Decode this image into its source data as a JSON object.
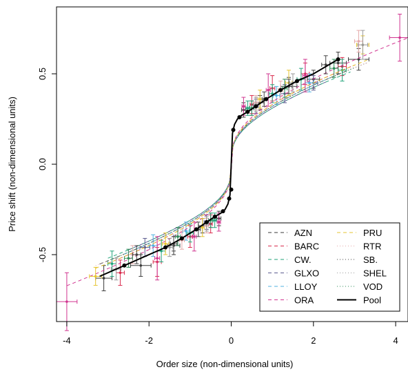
{
  "chart_data": {
    "type": "scatter",
    "title": "",
    "xlabel": "Order size (non-dimensional units)",
    "ylabel": "Price shift (non-dimensional units)",
    "xlim": [
      -4.25,
      4.3
    ],
    "ylim": [
      -0.87,
      0.87
    ],
    "xticks": [
      -4,
      -2,
      0,
      2,
      4
    ],
    "xtick_labels": [
      "-4",
      "-2",
      "0",
      "2",
      "4"
    ],
    "yticks": [
      -0.5,
      0.0,
      0.5
    ],
    "ytick_labels": [
      "-0.5",
      "0.0",
      "0.5"
    ],
    "grid": false,
    "legend_position": "bottom-right",
    "legend_columns": 2,
    "pool_curve": {
      "x": [
        -3.2,
        -2.6,
        -2.0,
        -1.6,
        -1.2,
        -0.85,
        -0.6,
        -0.4,
        -0.25,
        -0.15,
        -0.08,
        -0.03,
        0,
        0.03,
        0.08,
        0.15,
        0.25,
        0.4,
        0.6,
        0.85,
        1.2,
        1.6,
        2.0,
        2.6
      ],
      "y": [
        -0.62,
        -0.56,
        -0.5,
        -0.46,
        -0.41,
        -0.36,
        -0.32,
        -0.29,
        -0.27,
        -0.25,
        -0.22,
        -0.17,
        0.0,
        0.17,
        0.22,
        0.25,
        0.27,
        0.29,
        0.32,
        0.36,
        0.41,
        0.46,
        0.5,
        0.58
      ]
    },
    "pool_points": {
      "x": [
        -2.6,
        -1.6,
        -1.2,
        -0.85,
        -0.6,
        -0.4,
        -0.2,
        -0.05,
        0,
        0.05,
        0.2,
        0.4,
        0.6,
        0.85,
        1.2,
        1.6,
        2.6
      ],
      "y": [
        -0.56,
        -0.46,
        -0.41,
        -0.36,
        -0.32,
        -0.29,
        -0.26,
        -0.19,
        -0.14,
        0.19,
        0.26,
        0.29,
        0.32,
        0.36,
        0.41,
        0.46,
        0.58
      ]
    },
    "series": [
      {
        "name": "AZN",
        "color": "#3a3a3a",
        "dash": "5,4",
        "a": 0.27,
        "b": 0.05,
        "xmin": -3.2,
        "xmax": 2.8,
        "points": [
          [
            -3.1,
            -0.63,
            0.2,
            0.07
          ],
          [
            -2.2,
            -0.56,
            0.25,
            0.06
          ],
          [
            -1.4,
            -0.45,
            0.15,
            0.05
          ],
          [
            -0.7,
            -0.34,
            0.1,
            0.04
          ],
          [
            -0.3,
            -0.3,
            0.05,
            0.04
          ],
          [
            0.3,
            0.3,
            0.05,
            0.04
          ],
          [
            0.7,
            0.34,
            0.1,
            0.04
          ],
          [
            1.4,
            0.43,
            0.2,
            0.05
          ],
          [
            2.0,
            0.47,
            0.15,
            0.05
          ],
          [
            2.6,
            0.56,
            0.2,
            0.06
          ],
          [
            3.1,
            0.58,
            0.25,
            0.06
          ]
        ]
      },
      {
        "name": "BARC",
        "color": "#d9294b",
        "dash": "5,4",
        "a": 0.28,
        "b": 0.05,
        "xmin": -3.0,
        "xmax": 3.0,
        "points": [
          [
            -2.7,
            -0.6,
            0.1,
            0.07
          ],
          [
            -1.8,
            -0.54,
            0.1,
            0.08
          ],
          [
            -1.0,
            -0.4,
            0.06,
            0.06
          ],
          [
            -0.5,
            -0.33,
            0.04,
            0.05
          ],
          [
            0.5,
            0.33,
            0.04,
            0.05
          ],
          [
            1.0,
            0.42,
            0.06,
            0.07
          ],
          [
            1.8,
            0.5,
            0.1,
            0.06
          ],
          [
            2.7,
            0.54,
            0.1,
            0.05
          ]
        ]
      },
      {
        "name": "CW.",
        "color": "#22a37a",
        "dash": "5,4",
        "a": 0.26,
        "b": 0.05,
        "xmin": -3.0,
        "xmax": 2.9,
        "points": [
          [
            -2.9,
            -0.55,
            0.1,
            0.07
          ],
          [
            -1.7,
            -0.48,
            0.1,
            0.06
          ],
          [
            -1.0,
            -0.38,
            0.08,
            0.05
          ],
          [
            -0.4,
            -0.31,
            0.04,
            0.04
          ],
          [
            0.4,
            0.31,
            0.04,
            0.04
          ],
          [
            1.0,
            0.39,
            0.08,
            0.05
          ],
          [
            1.7,
            0.47,
            0.1,
            0.06
          ],
          [
            2.7,
            0.52,
            0.1,
            0.06
          ]
        ]
      },
      {
        "name": "GLXO",
        "color": "#5b5b8f",
        "dash": "5,4",
        "a": 0.26,
        "b": 0.05,
        "xmin": -2.5,
        "xmax": 2.3,
        "points": [
          [
            -2.1,
            -0.46,
            0.12,
            0.05
          ],
          [
            -1.3,
            -0.4,
            0.1,
            0.05
          ],
          [
            -0.6,
            -0.32,
            0.06,
            0.04
          ],
          [
            0.6,
            0.32,
            0.06,
            0.04
          ],
          [
            1.3,
            0.39,
            0.1,
            0.05
          ],
          [
            2.0,
            0.45,
            0.1,
            0.04
          ]
        ]
      },
      {
        "name": "LLOY",
        "color": "#4fb1e0",
        "dash": "5,4",
        "a": 0.27,
        "b": 0.05,
        "xmin": -2.6,
        "xmax": 2.5,
        "points": [
          [
            -1.9,
            -0.45,
            0.1,
            0.06
          ],
          [
            -1.1,
            -0.37,
            0.08,
            0.05
          ],
          [
            -0.5,
            -0.31,
            0.05,
            0.04
          ],
          [
            0.5,
            0.31,
            0.05,
            0.04
          ],
          [
            1.1,
            0.38,
            0.08,
            0.05
          ],
          [
            1.9,
            0.45,
            0.1,
            0.05
          ]
        ]
      },
      {
        "name": "ORA",
        "color": "#d0338f",
        "dash": "5,4",
        "a": 0.29,
        "b": 0.055,
        "xmin": -4.0,
        "xmax": 4.3,
        "points": [
          [
            -4.0,
            -0.76,
            0.25,
            0.16
          ],
          [
            -1.8,
            -0.52,
            0.06,
            0.12
          ],
          [
            -0.9,
            -0.4,
            0.05,
            0.08
          ],
          [
            -0.3,
            -0.32,
            0.04,
            0.05
          ],
          [
            0.3,
            0.32,
            0.04,
            0.05
          ],
          [
            0.9,
            0.41,
            0.05,
            0.09
          ],
          [
            1.8,
            0.49,
            0.06,
            0.09
          ],
          [
            4.1,
            0.7,
            0.25,
            0.13
          ]
        ]
      },
      {
        "name": "PRU",
        "color": "#e6c430",
        "dash": "5,4",
        "a": 0.28,
        "b": 0.05,
        "xmin": -3.3,
        "xmax": 3.3,
        "points": [
          [
            -3.3,
            -0.62,
            0.15,
            0.05
          ],
          [
            -1.6,
            -0.44,
            0.08,
            0.06
          ],
          [
            -0.7,
            -0.35,
            0.05,
            0.05
          ],
          [
            0.7,
            0.36,
            0.05,
            0.05
          ],
          [
            1.4,
            0.45,
            0.08,
            0.07
          ],
          [
            3.2,
            0.66,
            0.15,
            0.05
          ]
        ]
      },
      {
        "name": "RTR",
        "color": "#e5a8a8",
        "dash": "1,3",
        "a": 0.27,
        "b": 0.05,
        "xmin": -3.3,
        "xmax": 3.3,
        "points": [
          [
            -2.4,
            -0.5,
            0.1,
            0.05
          ],
          [
            -1.2,
            -0.42,
            0.06,
            0.05
          ],
          [
            -0.6,
            -0.34,
            0.05,
            0.04
          ],
          [
            0.6,
            0.34,
            0.05,
            0.04
          ],
          [
            1.2,
            0.41,
            0.06,
            0.05
          ],
          [
            3.1,
            0.68,
            0.1,
            0.06
          ]
        ]
      },
      {
        "name": "SB.",
        "color": "#444444",
        "dash": "1,3",
        "a": 0.27,
        "b": 0.05,
        "xmin": -3.0,
        "xmax": 3.0,
        "points": [
          [
            -2.3,
            -0.5,
            0.1,
            0.05
          ],
          [
            -1.4,
            -0.44,
            0.08,
            0.04
          ],
          [
            -0.8,
            -0.36,
            0.05,
            0.04
          ],
          [
            0.8,
            0.36,
            0.05,
            0.04
          ],
          [
            1.4,
            0.43,
            0.08,
            0.04
          ],
          [
            2.3,
            0.55,
            0.1,
            0.05
          ]
        ]
      },
      {
        "name": "SHEL",
        "color": "#999999",
        "dash": "1,3",
        "a": 0.27,
        "b": 0.05,
        "xmin": -3.0,
        "xmax": 3.3,
        "points": [
          [
            -2.8,
            -0.58,
            0.12,
            0.06
          ],
          [
            -1.5,
            -0.46,
            0.08,
            0.05
          ],
          [
            -0.6,
            -0.33,
            0.05,
            0.04
          ],
          [
            0.6,
            0.33,
            0.05,
            0.04
          ],
          [
            1.5,
            0.45,
            0.08,
            0.05
          ],
          [
            3.2,
            0.66,
            0.12,
            0.08
          ]
        ]
      },
      {
        "name": "VOD",
        "color": "#2e8b57",
        "dash": "1,3",
        "a": 0.27,
        "b": 0.05,
        "xmin": -3.0,
        "xmax": 3.0,
        "points": [
          [
            -2.5,
            -0.52,
            0.1,
            0.05
          ],
          [
            -1.3,
            -0.4,
            0.06,
            0.05
          ],
          [
            -0.5,
            -0.31,
            0.05,
            0.04
          ],
          [
            0.5,
            0.31,
            0.05,
            0.04
          ],
          [
            1.3,
            0.42,
            0.06,
            0.05
          ],
          [
            2.5,
            0.53,
            0.1,
            0.05
          ]
        ]
      }
    ],
    "pool_name": "Pool",
    "pool_color": "#000000"
  }
}
